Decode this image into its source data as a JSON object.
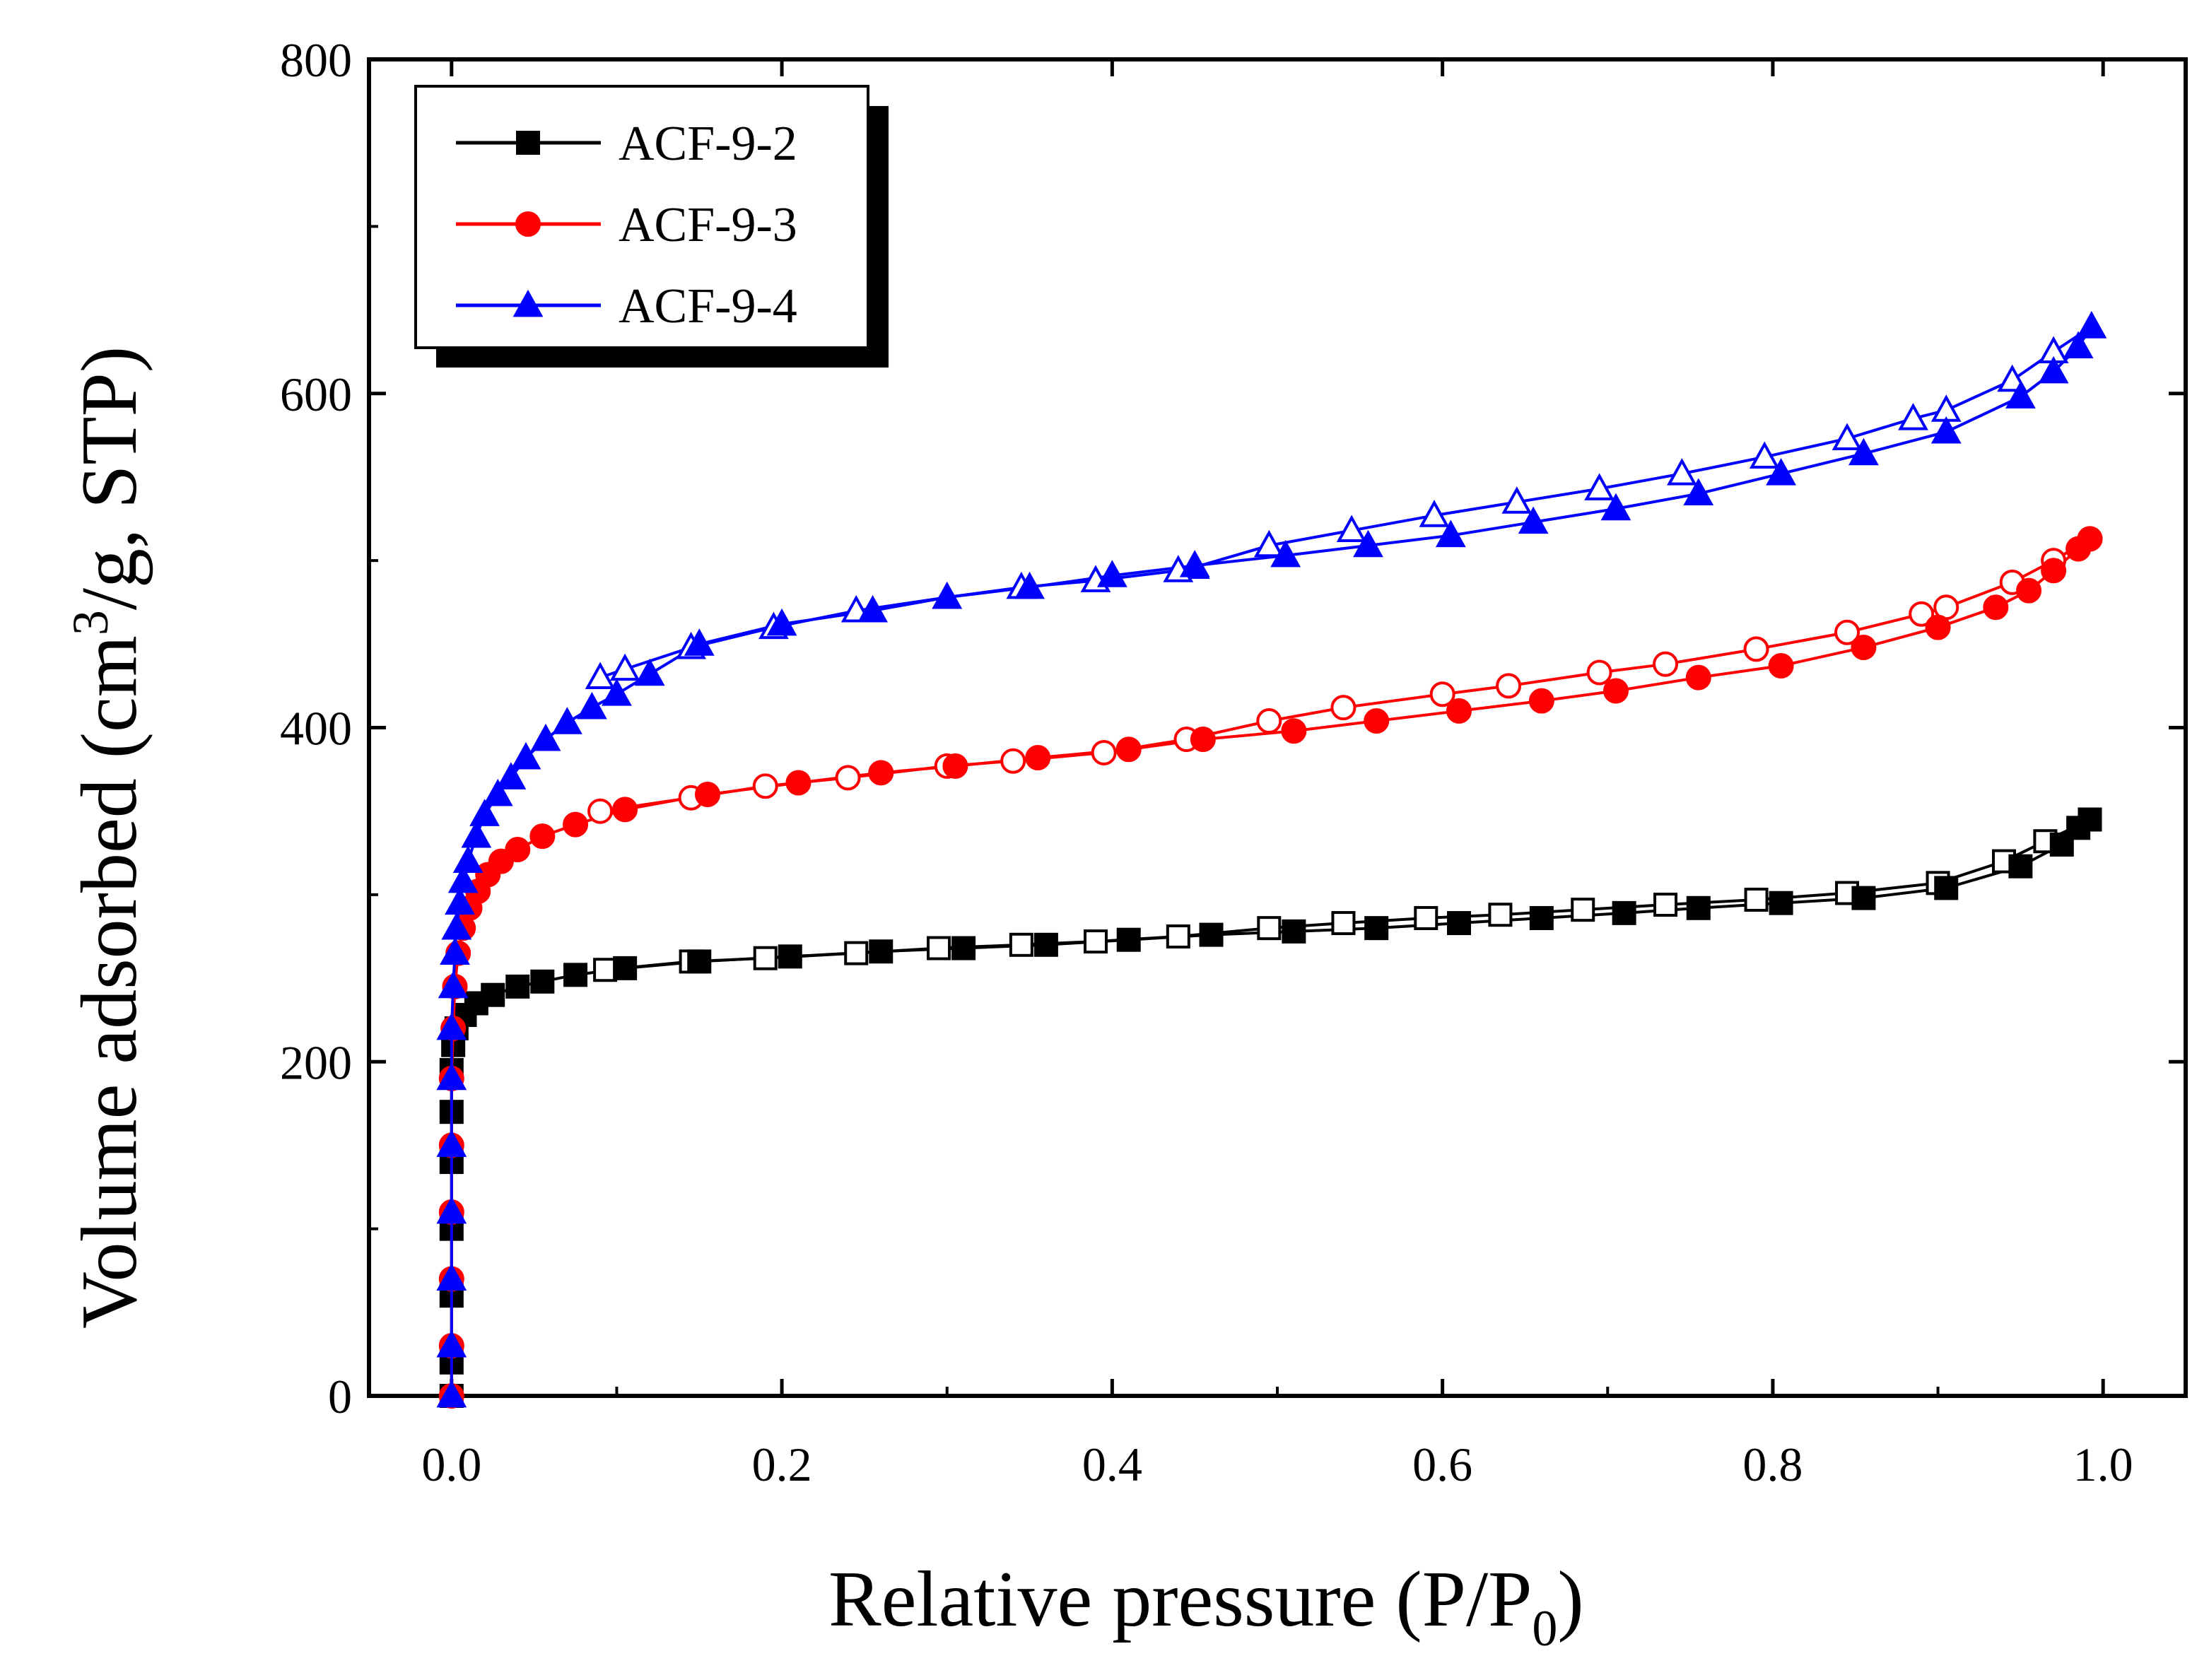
{
  "chart_data": {
    "type": "scatter",
    "title": "",
    "xlabel": "Relative pressure (P/P",
    "xlabel_sub": "0",
    "xlabel_end": ")",
    "ylabel": "Volume adsorbed (cm",
    "ylabel_sup": "3",
    "ylabel_end": "/g, STP)",
    "xlim": [
      -0.05,
      1.05
    ],
    "ylim": [
      0,
      800
    ],
    "xticks": [
      "0.0",
      "0.2",
      "0.4",
      "0.6",
      "0.8",
      "1.0"
    ],
    "yticks": [
      "0",
      "200",
      "400",
      "600",
      "800"
    ],
    "legend_position": "top-left",
    "series": [
      {
        "name": "ACF-9-2",
        "color": "#000000",
        "marker": "square",
        "adsorption": [
          [
            0.0,
            0
          ],
          [
            0.0,
            20
          ],
          [
            0.0,
            60
          ],
          [
            0.0,
            100
          ],
          [
            0.0,
            140
          ],
          [
            0.0,
            170
          ],
          [
            0.0,
            195
          ],
          [
            0.001,
            210
          ],
          [
            0.003,
            220
          ],
          [
            0.008,
            228
          ],
          [
            0.015,
            235
          ],
          [
            0.025,
            240
          ],
          [
            0.04,
            245
          ],
          [
            0.055,
            248
          ],
          [
            0.075,
            252
          ],
          [
            0.105,
            256
          ],
          [
            0.15,
            260
          ],
          [
            0.205,
            263
          ],
          [
            0.26,
            266
          ],
          [
            0.31,
            268
          ],
          [
            0.36,
            270
          ],
          [
            0.41,
            273
          ],
          [
            0.46,
            276
          ],
          [
            0.51,
            278
          ],
          [
            0.56,
            280
          ],
          [
            0.61,
            283
          ],
          [
            0.66,
            286
          ],
          [
            0.71,
            289
          ],
          [
            0.755,
            292
          ],
          [
            0.805,
            295
          ],
          [
            0.855,
            298
          ],
          [
            0.905,
            304
          ],
          [
            0.95,
            317
          ],
          [
            0.975,
            330
          ],
          [
            0.985,
            340
          ],
          [
            0.992,
            345
          ]
        ],
        "desorption": [
          [
            0.992,
            345
          ],
          [
            0.965,
            332
          ],
          [
            0.94,
            320
          ],
          [
            0.9,
            307
          ],
          [
            0.845,
            301
          ],
          [
            0.79,
            297
          ],
          [
            0.735,
            294
          ],
          [
            0.685,
            291
          ],
          [
            0.635,
            288
          ],
          [
            0.59,
            286
          ],
          [
            0.54,
            283
          ],
          [
            0.495,
            280
          ],
          [
            0.44,
            275
          ],
          [
            0.39,
            272
          ],
          [
            0.345,
            270
          ],
          [
            0.295,
            268
          ],
          [
            0.245,
            265
          ],
          [
            0.19,
            262
          ],
          [
            0.145,
            260
          ],
          [
            0.093,
            255
          ]
        ]
      },
      {
        "name": "ACF-9-3",
        "color": "#ff0000",
        "marker": "circle",
        "adsorption": [
          [
            0.0,
            0
          ],
          [
            0.0,
            30
          ],
          [
            0.0,
            70
          ],
          [
            0.0,
            110
          ],
          [
            0.0,
            150
          ],
          [
            0.0,
            190
          ],
          [
            0.001,
            220
          ],
          [
            0.002,
            245
          ],
          [
            0.004,
            265
          ],
          [
            0.007,
            280
          ],
          [
            0.011,
            292
          ],
          [
            0.016,
            302
          ],
          [
            0.022,
            312
          ],
          [
            0.03,
            320
          ],
          [
            0.04,
            327
          ],
          [
            0.055,
            335
          ],
          [
            0.075,
            342
          ],
          [
            0.105,
            351
          ],
          [
            0.155,
            360
          ],
          [
            0.21,
            367
          ],
          [
            0.26,
            373
          ],
          [
            0.305,
            377
          ],
          [
            0.355,
            382
          ],
          [
            0.41,
            387
          ],
          [
            0.455,
            393
          ],
          [
            0.51,
            398
          ],
          [
            0.56,
            404
          ],
          [
            0.61,
            410
          ],
          [
            0.66,
            416
          ],
          [
            0.705,
            422
          ],
          [
            0.755,
            430
          ],
          [
            0.805,
            437
          ],
          [
            0.855,
            448
          ],
          [
            0.9,
            460
          ],
          [
            0.935,
            472
          ],
          [
            0.955,
            482
          ],
          [
            0.97,
            494
          ],
          [
            0.985,
            507
          ],
          [
            0.992,
            513
          ]
        ],
        "desorption": [
          [
            0.992,
            513
          ],
          [
            0.97,
            500
          ],
          [
            0.945,
            487
          ],
          [
            0.905,
            472
          ],
          [
            0.89,
            468
          ],
          [
            0.845,
            457
          ],
          [
            0.79,
            447
          ],
          [
            0.735,
            438
          ],
          [
            0.695,
            433
          ],
          [
            0.64,
            425
          ],
          [
            0.6,
            420
          ],
          [
            0.54,
            412
          ],
          [
            0.495,
            404
          ],
          [
            0.445,
            393
          ],
          [
            0.395,
            385
          ],
          [
            0.34,
            380
          ],
          [
            0.3,
            377
          ],
          [
            0.24,
            370
          ],
          [
            0.19,
            365
          ],
          [
            0.145,
            358
          ],
          [
            0.09,
            350
          ]
        ]
      },
      {
        "name": "ACF-9-4",
        "color": "#0000ff",
        "marker": "triangle",
        "adsorption": [
          [
            0.0,
            0
          ],
          [
            0.0,
            30
          ],
          [
            0.0,
            70
          ],
          [
            0.0,
            110
          ],
          [
            0.0,
            150
          ],
          [
            0.0,
            190
          ],
          [
            0.0,
            220
          ],
          [
            0.001,
            245
          ],
          [
            0.002,
            265
          ],
          [
            0.003,
            280
          ],
          [
            0.005,
            295
          ],
          [
            0.007,
            308
          ],
          [
            0.01,
            320
          ],
          [
            0.015,
            335
          ],
          [
            0.02,
            348
          ],
          [
            0.028,
            360
          ],
          [
            0.036,
            370
          ],
          [
            0.045,
            382
          ],
          [
            0.057,
            393
          ],
          [
            0.07,
            403
          ],
          [
            0.085,
            412
          ],
          [
            0.1,
            420
          ],
          [
            0.12,
            432
          ],
          [
            0.15,
            450
          ],
          [
            0.2,
            462
          ],
          [
            0.255,
            470
          ],
          [
            0.3,
            478
          ],
          [
            0.35,
            484
          ],
          [
            0.4,
            491
          ],
          [
            0.45,
            497
          ],
          [
            0.505,
            503
          ],
          [
            0.555,
            509
          ],
          [
            0.605,
            515
          ],
          [
            0.655,
            523
          ],
          [
            0.705,
            531
          ],
          [
            0.755,
            540
          ],
          [
            0.805,
            552
          ],
          [
            0.855,
            564
          ],
          [
            0.905,
            577
          ],
          [
            0.95,
            598
          ],
          [
            0.97,
            613
          ],
          [
            0.985,
            628
          ],
          [
            0.993,
            640
          ]
        ],
        "desorption": [
          [
            0.993,
            640
          ],
          [
            0.97,
            625
          ],
          [
            0.945,
            608
          ],
          [
            0.905,
            590
          ],
          [
            0.885,
            585
          ],
          [
            0.845,
            573
          ],
          [
            0.795,
            562
          ],
          [
            0.745,
            552
          ],
          [
            0.695,
            543
          ],
          [
            0.645,
            535
          ],
          [
            0.595,
            527
          ],
          [
            0.545,
            518
          ],
          [
            0.495,
            509
          ],
          [
            0.45,
            496
          ],
          [
            0.44,
            494
          ],
          [
            0.39,
            488
          ],
          [
            0.345,
            484
          ],
          [
            0.3,
            478
          ],
          [
            0.245,
            470
          ],
          [
            0.195,
            460
          ],
          [
            0.145,
            448
          ],
          [
            0.105,
            435
          ],
          [
            0.09,
            430
          ]
        ]
      }
    ]
  }
}
